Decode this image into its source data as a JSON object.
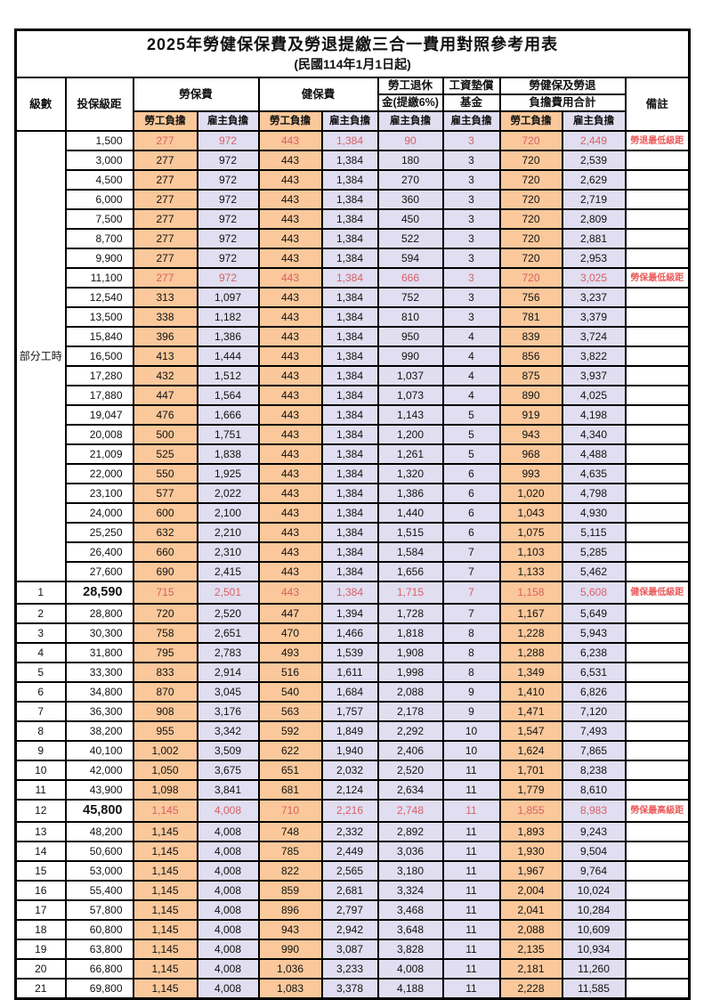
{
  "title": "2025年勞健保保費及勞退提繳三合一費用對照參考用表",
  "subtitle": "(民國114年1月1日起)",
  "header": {
    "level": "級數",
    "bracket": "投保級距",
    "labor_ins": "勞保費",
    "health_ins": "健保費",
    "pension_line1": "勞工退休",
    "pension_line2": "金(提繳6%)",
    "wage_fund_line1": "工資墊償",
    "wage_fund_line2": "基金",
    "total_line1": "勞健保及勞退",
    "total_line2": "負擔費用合計",
    "remark": "備註",
    "employee": "勞工負擔",
    "employer": "雇主負擔"
  },
  "part_time_span": {
    "label": "部分工時",
    "rows": 23
  },
  "colors": {
    "employee_bg": "#FAC89B",
    "employer_bg": "#E0DEF0",
    "highlight_value_red": "#D95F66",
    "remark_red": "#EE5A5A",
    "border": "#000000"
  },
  "rows": [
    {
      "level": "",
      "bracket": "1,500",
      "v": [
        "277",
        "972",
        "443",
        "1,384",
        "90",
        "3",
        "720",
        "2,449"
      ],
      "remark": "勞退最低級距",
      "red": true,
      "big": false
    },
    {
      "level": "",
      "bracket": "3,000",
      "v": [
        "277",
        "972",
        "443",
        "1,384",
        "180",
        "3",
        "720",
        "2,539"
      ],
      "remark": "",
      "red": false,
      "big": false
    },
    {
      "level": "",
      "bracket": "4,500",
      "v": [
        "277",
        "972",
        "443",
        "1,384",
        "270",
        "3",
        "720",
        "2,629"
      ],
      "remark": "",
      "red": false,
      "big": false
    },
    {
      "level": "",
      "bracket": "6,000",
      "v": [
        "277",
        "972",
        "443",
        "1,384",
        "360",
        "3",
        "720",
        "2,719"
      ],
      "remark": "",
      "red": false,
      "big": false
    },
    {
      "level": "",
      "bracket": "7,500",
      "v": [
        "277",
        "972",
        "443",
        "1,384",
        "450",
        "3",
        "720",
        "2,809"
      ],
      "remark": "",
      "red": false,
      "big": false
    },
    {
      "level": "",
      "bracket": "8,700",
      "v": [
        "277",
        "972",
        "443",
        "1,384",
        "522",
        "3",
        "720",
        "2,881"
      ],
      "remark": "",
      "red": false,
      "big": false
    },
    {
      "level": "",
      "bracket": "9,900",
      "v": [
        "277",
        "972",
        "443",
        "1,384",
        "594",
        "3",
        "720",
        "2,953"
      ],
      "remark": "",
      "red": false,
      "big": false
    },
    {
      "level": "",
      "bracket": "11,100",
      "v": [
        "277",
        "972",
        "443",
        "1,384",
        "666",
        "3",
        "720",
        "3,025"
      ],
      "remark": "勞保最低級距",
      "red": true,
      "big": false
    },
    {
      "level": "",
      "bracket": "12,540",
      "v": [
        "313",
        "1,097",
        "443",
        "1,384",
        "752",
        "3",
        "756",
        "3,237"
      ],
      "remark": "",
      "red": false,
      "big": false
    },
    {
      "level": "",
      "bracket": "13,500",
      "v": [
        "338",
        "1,182",
        "443",
        "1,384",
        "810",
        "3",
        "781",
        "3,379"
      ],
      "remark": "",
      "red": false,
      "big": false
    },
    {
      "level": "",
      "bracket": "15,840",
      "v": [
        "396",
        "1,386",
        "443",
        "1,384",
        "950",
        "4",
        "839",
        "3,724"
      ],
      "remark": "",
      "red": false,
      "big": false
    },
    {
      "level": "",
      "bracket": "16,500",
      "v": [
        "413",
        "1,444",
        "443",
        "1,384",
        "990",
        "4",
        "856",
        "3,822"
      ],
      "remark": "",
      "red": false,
      "big": false
    },
    {
      "level": "",
      "bracket": "17,280",
      "v": [
        "432",
        "1,512",
        "443",
        "1,384",
        "1,037",
        "4",
        "875",
        "3,937"
      ],
      "remark": "",
      "red": false,
      "big": false
    },
    {
      "level": "",
      "bracket": "17,880",
      "v": [
        "447",
        "1,564",
        "443",
        "1,384",
        "1,073",
        "4",
        "890",
        "4,025"
      ],
      "remark": "",
      "red": false,
      "big": false
    },
    {
      "level": "",
      "bracket": "19,047",
      "v": [
        "476",
        "1,666",
        "443",
        "1,384",
        "1,143",
        "5",
        "919",
        "4,198"
      ],
      "remark": "",
      "red": false,
      "big": false
    },
    {
      "level": "",
      "bracket": "20,008",
      "v": [
        "500",
        "1,751",
        "443",
        "1,384",
        "1,200",
        "5",
        "943",
        "4,340"
      ],
      "remark": "",
      "red": false,
      "big": false
    },
    {
      "level": "",
      "bracket": "21,009",
      "v": [
        "525",
        "1,838",
        "443",
        "1,384",
        "1,261",
        "5",
        "968",
        "4,488"
      ],
      "remark": "",
      "red": false,
      "big": false
    },
    {
      "level": "",
      "bracket": "22,000",
      "v": [
        "550",
        "1,925",
        "443",
        "1,384",
        "1,320",
        "6",
        "993",
        "4,635"
      ],
      "remark": "",
      "red": false,
      "big": false
    },
    {
      "level": "",
      "bracket": "23,100",
      "v": [
        "577",
        "2,022",
        "443",
        "1,384",
        "1,386",
        "6",
        "1,020",
        "4,798"
      ],
      "remark": "",
      "red": false,
      "big": false
    },
    {
      "level": "",
      "bracket": "24,000",
      "v": [
        "600",
        "2,100",
        "443",
        "1,384",
        "1,440",
        "6",
        "1,043",
        "4,930"
      ],
      "remark": "",
      "red": false,
      "big": false
    },
    {
      "level": "",
      "bracket": "25,250",
      "v": [
        "632",
        "2,210",
        "443",
        "1,384",
        "1,515",
        "6",
        "1,075",
        "5,115"
      ],
      "remark": "",
      "red": false,
      "big": false
    },
    {
      "level": "",
      "bracket": "26,400",
      "v": [
        "660",
        "2,310",
        "443",
        "1,384",
        "1,584",
        "7",
        "1,103",
        "5,285"
      ],
      "remark": "",
      "red": false,
      "big": false
    },
    {
      "level": "",
      "bracket": "27,600",
      "v": [
        "690",
        "2,415",
        "443",
        "1,384",
        "1,656",
        "7",
        "1,133",
        "5,462"
      ],
      "remark": "",
      "red": false,
      "big": false
    },
    {
      "level": "1",
      "bracket": "28,590",
      "v": [
        "715",
        "2,501",
        "443",
        "1,384",
        "1,715",
        "7",
        "1,158",
        "5,608"
      ],
      "remark": "健保最低級距",
      "red": true,
      "big": true
    },
    {
      "level": "2",
      "bracket": "28,800",
      "v": [
        "720",
        "2,520",
        "447",
        "1,394",
        "1,728",
        "7",
        "1,167",
        "5,649"
      ],
      "remark": "",
      "red": false,
      "big": false
    },
    {
      "level": "3",
      "bracket": "30,300",
      "v": [
        "758",
        "2,651",
        "470",
        "1,466",
        "1,818",
        "8",
        "1,228",
        "5,943"
      ],
      "remark": "",
      "red": false,
      "big": false
    },
    {
      "level": "4",
      "bracket": "31,800",
      "v": [
        "795",
        "2,783",
        "493",
        "1,539",
        "1,908",
        "8",
        "1,288",
        "6,238"
      ],
      "remark": "",
      "red": false,
      "big": false
    },
    {
      "level": "5",
      "bracket": "33,300",
      "v": [
        "833",
        "2,914",
        "516",
        "1,611",
        "1,998",
        "8",
        "1,349",
        "6,531"
      ],
      "remark": "",
      "red": false,
      "big": false
    },
    {
      "level": "6",
      "bracket": "34,800",
      "v": [
        "870",
        "3,045",
        "540",
        "1,684",
        "2,088",
        "9",
        "1,410",
        "6,826"
      ],
      "remark": "",
      "red": false,
      "big": false
    },
    {
      "level": "7",
      "bracket": "36,300",
      "v": [
        "908",
        "3,176",
        "563",
        "1,757",
        "2,178",
        "9",
        "1,471",
        "7,120"
      ],
      "remark": "",
      "red": false,
      "big": false
    },
    {
      "level": "8",
      "bracket": "38,200",
      "v": [
        "955",
        "3,342",
        "592",
        "1,849",
        "2,292",
        "10",
        "1,547",
        "7,493"
      ],
      "remark": "",
      "red": false,
      "big": false
    },
    {
      "level": "9",
      "bracket": "40,100",
      "v": [
        "1,002",
        "3,509",
        "622",
        "1,940",
        "2,406",
        "10",
        "1,624",
        "7,865"
      ],
      "remark": "",
      "red": false,
      "big": false
    },
    {
      "level": "10",
      "bracket": "42,000",
      "v": [
        "1,050",
        "3,675",
        "651",
        "2,032",
        "2,520",
        "11",
        "1,701",
        "8,238"
      ],
      "remark": "",
      "red": false,
      "big": false
    },
    {
      "level": "11",
      "bracket": "43,900",
      "v": [
        "1,098",
        "3,841",
        "681",
        "2,124",
        "2,634",
        "11",
        "1,779",
        "8,610"
      ],
      "remark": "",
      "red": false,
      "big": false
    },
    {
      "level": "12",
      "bracket": "45,800",
      "v": [
        "1,145",
        "4,008",
        "710",
        "2,216",
        "2,748",
        "11",
        "1,855",
        "8,983"
      ],
      "remark": "勞保最高級距",
      "red": true,
      "big": true
    },
    {
      "level": "13",
      "bracket": "48,200",
      "v": [
        "1,145",
        "4,008",
        "748",
        "2,332",
        "2,892",
        "11",
        "1,893",
        "9,243"
      ],
      "remark": "",
      "red": false,
      "big": false
    },
    {
      "level": "14",
      "bracket": "50,600",
      "v": [
        "1,145",
        "4,008",
        "785",
        "2,449",
        "3,036",
        "11",
        "1,930",
        "9,504"
      ],
      "remark": "",
      "red": false,
      "big": false
    },
    {
      "level": "15",
      "bracket": "53,000",
      "v": [
        "1,145",
        "4,008",
        "822",
        "2,565",
        "3,180",
        "11",
        "1,967",
        "9,764"
      ],
      "remark": "",
      "red": false,
      "big": false
    },
    {
      "level": "16",
      "bracket": "55,400",
      "v": [
        "1,145",
        "4,008",
        "859",
        "2,681",
        "3,324",
        "11",
        "2,004",
        "10,024"
      ],
      "remark": "",
      "red": false,
      "big": false
    },
    {
      "level": "17",
      "bracket": "57,800",
      "v": [
        "1,145",
        "4,008",
        "896",
        "2,797",
        "3,468",
        "11",
        "2,041",
        "10,284"
      ],
      "remark": "",
      "red": false,
      "big": false
    },
    {
      "level": "18",
      "bracket": "60,800",
      "v": [
        "1,145",
        "4,008",
        "943",
        "2,942",
        "3,648",
        "11",
        "2,088",
        "10,609"
      ],
      "remark": "",
      "red": false,
      "big": false
    },
    {
      "level": "19",
      "bracket": "63,800",
      "v": [
        "1,145",
        "4,008",
        "990",
        "3,087",
        "3,828",
        "11",
        "2,135",
        "10,934"
      ],
      "remark": "",
      "red": false,
      "big": false
    },
    {
      "level": "20",
      "bracket": "66,800",
      "v": [
        "1,145",
        "4,008",
        "1,036",
        "3,233",
        "4,008",
        "11",
        "2,181",
        "11,260"
      ],
      "remark": "",
      "red": false,
      "big": false
    },
    {
      "level": "21",
      "bracket": "69,800",
      "v": [
        "1,145",
        "4,008",
        "1,083",
        "3,378",
        "4,188",
        "11",
        "2,228",
        "11,585"
      ],
      "remark": "",
      "red": false,
      "big": false
    }
  ],
  "value_column_names": [
    "labor-ins-employee-cell",
    "labor-ins-employer-cell",
    "health-ins-employee-cell",
    "health-ins-employer-cell",
    "pension-employer-cell",
    "wage-fund-employer-cell",
    "total-employee-cell",
    "total-employer-cell"
  ]
}
